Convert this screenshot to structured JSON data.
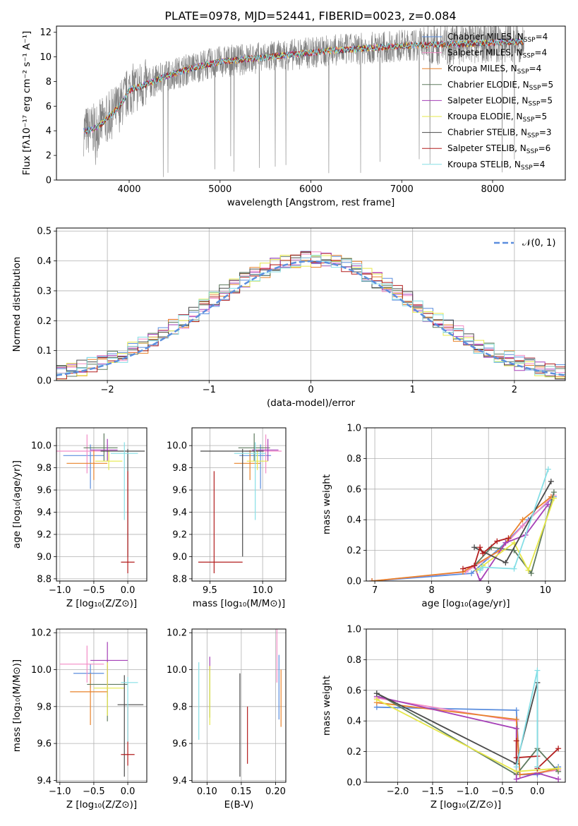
{
  "figure_title": "PLATE=0978, MJD=52441, FIBERID=0023, z=0.084",
  "colors": {
    "Chabrier MILES": "#5b8ede",
    "Salpeter MILES": "#f28cc6",
    "Kroupa MILES": "#e8822a",
    "Chabrier ELODIE": "#5f7a5f",
    "Salpeter ELODIE": "#a53fb7",
    "Kroupa ELODIE": "#e6e84a",
    "Chabrier STELIB": "#4a4a4a",
    "Salpeter STELIB": "#b31e1e",
    "Kroupa STELIB": "#86dfe6",
    "data": "#808080",
    "normal": "#5b8ede"
  },
  "chart_data": [
    {
      "id": "spectrum",
      "type": "line",
      "xlabel": "wavelength [Angstrom, rest frame]",
      "ylabel": "Flux [fλ10⁻¹⁷ erg cm⁻² s⁻¹ A⁻¹]",
      "xlim": [
        3200,
        8800
      ],
      "ylim": [
        0,
        12.5
      ],
      "xticks": [
        "4000",
        "5000",
        "6000",
        "7000",
        "8000"
      ],
      "yticks": [
        "0",
        "2",
        "4",
        "6",
        "8",
        "10",
        "12"
      ],
      "legend_position": "right",
      "legend": [
        {
          "label": "Chabrier MILES, N_SSP=4",
          "color": "Chabrier MILES"
        },
        {
          "label": "Salpeter MILES, N_SSP=4",
          "color": "Salpeter MILES"
        },
        {
          "label": "Kroupa MILES, N_SSP=4",
          "color": "Kroupa MILES"
        },
        {
          "label": "Chabrier ELODIE, N_SSP=5",
          "color": "Chabrier ELODIE"
        },
        {
          "label": "Salpeter ELODIE, N_SSP=5",
          "color": "Salpeter ELODIE"
        },
        {
          "label": "Kroupa ELODIE, N_SSP=5",
          "color": "Kroupa ELODIE"
        },
        {
          "label": "Chabrier STELIB, N_SSP=3",
          "color": "Chabrier STELIB"
        },
        {
          "label": "Salpeter STELIB, N_SSP=6",
          "color": "Salpeter STELIB"
        },
        {
          "label": "Kroupa STELIB, N_SSP=4",
          "color": "Kroupa STELIB"
        }
      ],
      "continuum": {
        "x": [
          3500,
          3600,
          3700,
          3800,
          3900,
          4000,
          4200,
          4400,
          4600,
          4800,
          5000,
          5400,
          5800,
          6200,
          6600,
          7000,
          7400,
          7800,
          8200,
          8300
        ],
        "y": [
          4.0,
          4.1,
          4.6,
          5.3,
          6.0,
          7.3,
          7.8,
          8.4,
          8.9,
          9.3,
          9.6,
          9.9,
          10.2,
          10.5,
          10.7,
          10.9,
          11.0,
          11.1,
          11.2,
          11.2
        ]
      }
    },
    {
      "id": "residuals",
      "type": "histogram",
      "xlabel": "(data-model)/error",
      "ylabel": "Normed distribution",
      "xlim": [
        -2.5,
        2.5
      ],
      "ylim": [
        0,
        0.51
      ],
      "xticks": [
        "−2",
        "−1",
        "0",
        "1",
        "2"
      ],
      "yticks": [
        "0.0",
        "0.1",
        "0.2",
        "0.3",
        "0.4",
        "0.5"
      ],
      "bin_width": 0.1,
      "gaussian_label": "𝒩(0, 1)",
      "legend_position": "top-right"
    },
    {
      "id": "age_vs_Z",
      "type": "errorbar",
      "xlabel": "Z [log₁₀(Z/Z⊙)]",
      "ylabel": "age  [log₁₀(age/yr)]",
      "xlim": [
        -1.05,
        0.28
      ],
      "ylim": [
        8.78,
        10.16
      ],
      "xticks": [
        "−1.0",
        "−0.5",
        "0.0"
      ],
      "yticks": [
        "8.8",
        "9.0",
        "9.2",
        "9.4",
        "9.6",
        "9.8",
        "10.0"
      ],
      "points": [
        {
          "model": "Chabrier MILES",
          "x": -0.55,
          "y": 9.91,
          "xerr": [
            0.4,
            0.2
          ],
          "yerr": [
            0.3,
            0.1
          ]
        },
        {
          "model": "Salpeter MILES",
          "x": -0.6,
          "y": 9.95,
          "xerr": [
            0.45,
            0.25
          ],
          "yerr": [
            0.2,
            0.15
          ]
        },
        {
          "model": "Kroupa MILES",
          "x": -0.5,
          "y": 9.84,
          "xerr": [
            0.4,
            0.2
          ],
          "yerr": [
            0.15,
            0.12
          ]
        },
        {
          "model": "Chabrier ELODIE",
          "x": -0.35,
          "y": 9.98,
          "xerr": [
            0.3,
            0.2
          ],
          "yerr": [
            0.12,
            0.13
          ]
        },
        {
          "model": "Salpeter ELODIE",
          "x": -0.3,
          "y": 9.96,
          "xerr": [
            0.25,
            0.15
          ],
          "yerr": [
            0.1,
            0.1
          ]
        },
        {
          "model": "Kroupa ELODIE",
          "x": -0.28,
          "y": 9.86,
          "xerr": [
            0.2,
            0.2
          ],
          "yerr": [
            0.08,
            0.1
          ]
        },
        {
          "model": "Chabrier STELIB",
          "x": 0.0,
          "y": 9.95,
          "xerr": [
            0.4,
            0.25
          ],
          "yerr": [
            0.95,
            0.02
          ]
        },
        {
          "model": "Salpeter STELIB",
          "x": 0.0,
          "y": 8.95,
          "xerr": [
            0.1,
            0.1
          ],
          "yerr": [
            0.1,
            0.82
          ]
        },
        {
          "model": "Kroupa STELIB",
          "x": -0.05,
          "y": 9.93,
          "xerr": [
            0.2,
            0.2
          ],
          "yerr": [
            0.6,
            0.1
          ]
        }
      ]
    },
    {
      "id": "age_vs_mass",
      "type": "errorbar",
      "xlabel": "mass [log₁₀(M/M⊙)]",
      "ylabel": "",
      "xlim": [
        9.33,
        10.22
      ],
      "ylim": [
        8.78,
        10.16
      ],
      "xticks": [
        "9.5",
        "10.0"
      ],
      "yticks": [
        "8.8",
        "9.0",
        "9.2",
        "9.4",
        "9.6",
        "9.8",
        "10.0"
      ],
      "points": [
        {
          "model": "Chabrier MILES",
          "x": 9.98,
          "y": 9.91,
          "xerr": [
            0.2,
            0.1
          ],
          "yerr": [
            0.3,
            0.1
          ]
        },
        {
          "model": "Salpeter MILES",
          "x": 10.03,
          "y": 9.95,
          "xerr": [
            0.2,
            0.15
          ],
          "yerr": [
            0.2,
            0.15
          ]
        },
        {
          "model": "Kroupa MILES",
          "x": 9.88,
          "y": 9.84,
          "xerr": [
            0.15,
            0.1
          ],
          "yerr": [
            0.15,
            0.12
          ]
        },
        {
          "model": "Chabrier ELODIE",
          "x": 9.92,
          "y": 9.98,
          "xerr": [
            0.15,
            0.15
          ],
          "yerr": [
            0.12,
            0.13
          ]
        },
        {
          "model": "Salpeter ELODIE",
          "x": 10.05,
          "y": 9.96,
          "xerr": [
            0.15,
            0.1
          ],
          "yerr": [
            0.1,
            0.1
          ]
        },
        {
          "model": "Kroupa ELODIE",
          "x": 9.95,
          "y": 9.86,
          "xerr": [
            0.1,
            0.1
          ],
          "yerr": [
            0.08,
            0.1
          ]
        },
        {
          "model": "Chabrier STELIB",
          "x": 9.81,
          "y": 9.95,
          "xerr": [
            0.4,
            0.2
          ],
          "yerr": [
            0.95,
            0.02
          ]
        },
        {
          "model": "Salpeter STELIB",
          "x": 9.54,
          "y": 8.95,
          "xerr": [
            0.15,
            0.27
          ],
          "yerr": [
            0.1,
            0.82
          ]
        },
        {
          "model": "Kroupa STELIB",
          "x": 9.93,
          "y": 9.93,
          "xerr": [
            0.2,
            0.1
          ],
          "yerr": [
            0.6,
            0.1
          ]
        }
      ]
    },
    {
      "id": "mass_weight_vs_age",
      "type": "line",
      "xlabel": "age  [log₁₀(age/yr)]",
      "ylabel": "mass weight",
      "xlim": [
        6.85,
        10.35
      ],
      "ylim": [
        0,
        1.0
      ],
      "xticks": [
        "7",
        "8",
        "9",
        "10"
      ],
      "yticks": [
        "0.0",
        "0.2",
        "0.4",
        "0.6",
        "0.8",
        "1.0"
      ],
      "series": [
        {
          "model": "Chabrier MILES",
          "x": [
            6.95,
            8.7,
            9.3,
            9.7,
            10.15
          ],
          "y": [
            0.0,
            0.05,
            0.25,
            0.4,
            0.55
          ]
        },
        {
          "model": "Salpeter MILES",
          "x": [
            6.95,
            8.6,
            9.2,
            9.6,
            10.15
          ],
          "y": [
            0.0,
            0.06,
            0.2,
            0.36,
            0.56
          ]
        },
        {
          "model": "Kroupa MILES",
          "x": [
            6.95,
            8.55,
            9.2,
            9.6,
            10.1
          ],
          "y": [
            0.0,
            0.06,
            0.2,
            0.4,
            0.55
          ]
        },
        {
          "model": "Chabrier ELODIE",
          "x": [
            8.75,
            9.05,
            9.45,
            9.75,
            10.15
          ],
          "y": [
            0.1,
            0.22,
            0.2,
            0.05,
            0.58
          ]
        },
        {
          "model": "Salpeter ELODIE",
          "x": [
            8.75,
            8.85,
            9.3,
            9.65,
            10.05
          ],
          "y": [
            0.1,
            0.0,
            0.25,
            0.3,
            0.5
          ]
        },
        {
          "model": "Kroupa ELODIE",
          "x": [
            8.8,
            8.9,
            9.45,
            9.7,
            10.15
          ],
          "y": [
            0.07,
            0.1,
            0.25,
            0.07,
            0.54
          ]
        },
        {
          "model": "Chabrier STELIB",
          "x": [
            8.75,
            9.3,
            10.1
          ],
          "y": [
            0.22,
            0.12,
            0.65
          ]
        },
        {
          "model": "Salpeter STELIB",
          "x": [
            8.55,
            8.75,
            8.85,
            8.9,
            9.15,
            9.35
          ],
          "y": [
            0.08,
            0.1,
            0.22,
            0.18,
            0.26,
            0.28
          ]
        },
        {
          "model": "Kroupa STELIB",
          "x": [
            8.85,
            8.9,
            9.45,
            10.05
          ],
          "y": [
            0.07,
            0.09,
            0.08,
            0.73
          ]
        }
      ]
    },
    {
      "id": "mass_vs_Z",
      "type": "errorbar",
      "xlabel": "Z [log₁₀(Z/Z⊙)]",
      "ylabel": "mass [log₁₀(M/M⊙)]",
      "xlim": [
        -1.05,
        0.28
      ],
      "ylim": [
        9.39,
        10.22
      ],
      "xticks": [
        "−1.0",
        "−0.5",
        "0.0"
      ],
      "yticks": [
        "9.4",
        "9.6",
        "9.8",
        "10.0",
        "10.2"
      ],
      "points": [
        {
          "model": "Chabrier MILES",
          "x": -0.55,
          "y": 9.98,
          "xerr": [
            0.25,
            0.2
          ],
          "yerr": [
            0.08,
            0.05
          ]
        },
        {
          "model": "Salpeter MILES",
          "x": -0.6,
          "y": 10.03,
          "xerr": [
            0.4,
            0.25
          ],
          "yerr": [
            0.1,
            0.1
          ]
        },
        {
          "model": "Kroupa MILES",
          "x": -0.55,
          "y": 9.88,
          "xerr": [
            0.3,
            0.25
          ],
          "yerr": [
            0.18,
            0.1
          ]
        },
        {
          "model": "Chabrier ELODIE",
          "x": -0.3,
          "y": 9.92,
          "xerr": [
            0.3,
            0.3
          ],
          "yerr": [
            0.2,
            0.1
          ]
        },
        {
          "model": "Salpeter ELODIE",
          "x": -0.3,
          "y": 10.05,
          "xerr": [
            0.25,
            0.3
          ],
          "yerr": [
            0.2,
            0.1
          ]
        },
        {
          "model": "Kroupa ELODIE",
          "x": -0.3,
          "y": 9.9,
          "xerr": [
            0.2,
            0.25
          ],
          "yerr": [
            0.15,
            0.14
          ]
        },
        {
          "model": "Chabrier STELIB",
          "x": -0.05,
          "y": 9.81,
          "xerr": [
            0.1,
            0.28
          ],
          "yerr": [
            0.39,
            0.16
          ]
        },
        {
          "model": "Salpeter STELIB",
          "x": 0.0,
          "y": 9.54,
          "xerr": [
            0.1,
            0.1
          ],
          "yerr": [
            0.06,
            0.26
          ]
        },
        {
          "model": "Kroupa STELIB",
          "x": 0.0,
          "y": 9.93,
          "xerr": [
            0.1,
            0.15
          ],
          "yerr": [
            0.32,
            0.03
          ]
        }
      ]
    },
    {
      "id": "mass_vs_EBV",
      "type": "errorbar",
      "xlabel": "E(B-V)",
      "ylabel": "",
      "xlim": [
        0.078,
        0.215
      ],
      "ylim": [
        9.39,
        10.22
      ],
      "xticks": [
        "0.10",
        "0.15",
        "0.20"
      ],
      "yticks": [
        "9.4",
        "9.6",
        "9.8",
        "10.0",
        "10.2"
      ],
      "points": [
        {
          "model": "Chabrier MILES",
          "x": 0.205,
          "y": 9.98,
          "xerr": [
            0,
            0
          ],
          "yerr": [
            0.25,
            0.1
          ]
        },
        {
          "model": "Salpeter MILES",
          "x": 0.202,
          "y": 10.03,
          "xerr": [
            0,
            0
          ],
          "yerr": [
            0.1,
            0.19
          ]
        },
        {
          "model": "Kroupa MILES",
          "x": 0.208,
          "y": 9.88,
          "xerr": [
            0,
            0
          ],
          "yerr": [
            0.19,
            0.12
          ]
        },
        {
          "model": "Chabrier ELODIE",
          "x": 0.104,
          "y": 9.92,
          "xerr": [
            0,
            0
          ],
          "yerr": [
            0.18,
            0.1
          ]
        },
        {
          "model": "Salpeter ELODIE",
          "x": 0.104,
          "y": 10.03,
          "xerr": [
            0,
            0
          ],
          "yerr": [
            0.04,
            0.04
          ]
        },
        {
          "model": "Kroupa ELODIE",
          "x": 0.104,
          "y": 9.9,
          "xerr": [
            0,
            0
          ],
          "yerr": [
            0.2,
            0.12
          ]
        },
        {
          "model": "Chabrier STELIB",
          "x": 0.148,
          "y": 9.7,
          "xerr": [
            0,
            0
          ],
          "yerr": [
            0.28,
            0.28
          ]
        },
        {
          "model": "Salpeter STELIB",
          "x": 0.159,
          "y": 9.64,
          "xerr": [
            0,
            0
          ],
          "yerr": [
            0.15,
            0.16
          ]
        },
        {
          "model": "Kroupa STELIB",
          "x": 0.088,
          "y": 9.83,
          "xerr": [
            0,
            0
          ],
          "yerr": [
            0.21,
            0.21
          ]
        }
      ]
    },
    {
      "id": "mass_weight_vs_Z",
      "type": "line",
      "xlabel": "Z [log₁₀(Z/Z⊙)]",
      "ylabel": "mass weight",
      "xlim": [
        -2.45,
        0.4
      ],
      "ylim": [
        0,
        1.0
      ],
      "xticks": [
        "−2.0",
        "−1.5",
        "−1.0",
        "−0.5",
        "0.0"
      ],
      "yticks": [
        "0.0",
        "0.2",
        "0.4",
        "0.6",
        "0.8",
        "1.0"
      ],
      "series": [
        {
          "model": "Chabrier MILES",
          "x": [
            -2.3,
            -0.3,
            -0.25,
            0.0,
            0.3
          ],
          "y": [
            0.49,
            0.47,
            0.05,
            0.05,
            0.1
          ]
        },
        {
          "model": "Salpeter MILES",
          "x": [
            -2.3,
            -0.3,
            -0.25,
            0.0,
            0.3
          ],
          "y": [
            0.55,
            0.4,
            0.05,
            0.06,
            0.08
          ]
        },
        {
          "model": "Kroupa MILES",
          "x": [
            -2.3,
            -0.3,
            -0.25,
            0.0,
            0.3
          ],
          "y": [
            0.52,
            0.41,
            0.05,
            0.06,
            0.09
          ]
        },
        {
          "model": "Chabrier ELODIE",
          "x": [
            -2.3,
            -0.3,
            0.0,
            0.3
          ],
          "y": [
            0.58,
            0.05,
            0.22,
            0.07
          ]
        },
        {
          "model": "Salpeter ELODIE",
          "x": [
            -2.3,
            -0.3,
            -0.3,
            0.0,
            0.3
          ],
          "y": [
            0.56,
            0.35,
            0.02,
            0.06,
            0.02
          ]
        },
        {
          "model": "Kroupa ELODIE",
          "x": [
            -2.3,
            -0.3,
            0.0,
            0.3
          ],
          "y": [
            0.54,
            0.07,
            0.08,
            0.09
          ]
        },
        {
          "model": "Chabrier STELIB",
          "x": [
            -2.3,
            -0.3,
            0.0,
            0.0
          ],
          "y": [
            0.58,
            0.12,
            0.65,
            0.1
          ]
        },
        {
          "model": "Salpeter STELIB",
          "x": [
            -0.3,
            -0.3,
            0.0,
            0.0,
            0.3
          ],
          "y": [
            0.27,
            0.16,
            0.17,
            0.09,
            0.22
          ]
        },
        {
          "model": "Kroupa STELIB",
          "x": [
            -0.3,
            0.0,
            0.0
          ],
          "y": [
            0.1,
            0.73,
            0.1
          ]
        }
      ]
    }
  ]
}
